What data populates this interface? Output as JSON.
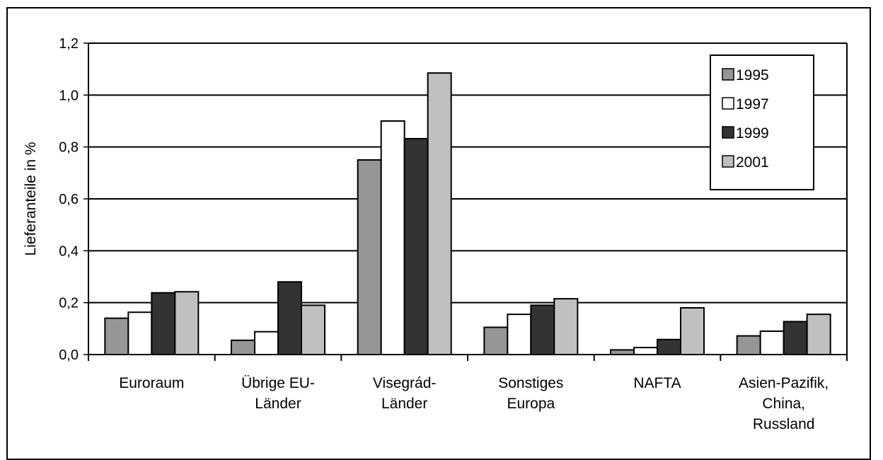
{
  "chart_data": {
    "type": "bar",
    "title": "",
    "xlabel": "",
    "ylabel": "Lieferanteile in %",
    "ylim": [
      0,
      1.2
    ],
    "yticks": [
      "0,0",
      "0,2",
      "0,4",
      "0,6",
      "0,8",
      "1,0",
      "1,2"
    ],
    "grid": true,
    "legend_position": "top-right",
    "categories": [
      [
        "Euroraum"
      ],
      [
        "Übrige EU-",
        "Länder"
      ],
      [
        "Visegrád-",
        "Länder"
      ],
      [
        "Sonstiges",
        "Europa"
      ],
      [
        "NAFTA"
      ],
      [
        "Asien-Pazifik,",
        "China,",
        "Russland"
      ]
    ],
    "series": [
      {
        "name": "1995",
        "color": "#969696",
        "values": [
          0.14,
          0.055,
          0.75,
          0.105,
          0.018,
          0.072
        ]
      },
      {
        "name": "1997",
        "color": "#ffffff",
        "values": [
          0.163,
          0.088,
          0.9,
          0.155,
          0.027,
          0.09
        ]
      },
      {
        "name": "1999",
        "color": "#333333",
        "values": [
          0.238,
          0.28,
          0.832,
          0.19,
          0.058,
          0.127
        ]
      },
      {
        "name": "2001",
        "color": "#c0c0c0",
        "values": [
          0.242,
          0.19,
          1.085,
          0.215,
          0.18,
          0.155
        ]
      }
    ]
  }
}
